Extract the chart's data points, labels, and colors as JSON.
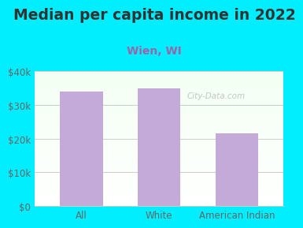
{
  "title": "Median per capita income in 2022",
  "subtitle": "Wien, WI",
  "categories": [
    "All",
    "White",
    "American Indian"
  ],
  "values": [
    34000,
    34800,
    21500
  ],
  "bar_color": "#c4aad8",
  "title_fontsize": 13.5,
  "title_color": "#333333",
  "subtitle_fontsize": 10,
  "subtitle_color": "#9966aa",
  "tick_label_color": "#666666",
  "ylim": [
    0,
    40000
  ],
  "yticks": [
    0,
    10000,
    20000,
    30000,
    40000
  ],
  "ytick_labels": [
    "$0",
    "$10k",
    "$20k",
    "$30k",
    "$40k"
  ],
  "background_outer": "#00eeff",
  "background_plot_color1": "#e8f5e8",
  "background_plot_color2": "#f5fff5",
  "watermark": "City-Data.com",
  "grid_color": "#cccccc",
  "bar_width": 0.55
}
